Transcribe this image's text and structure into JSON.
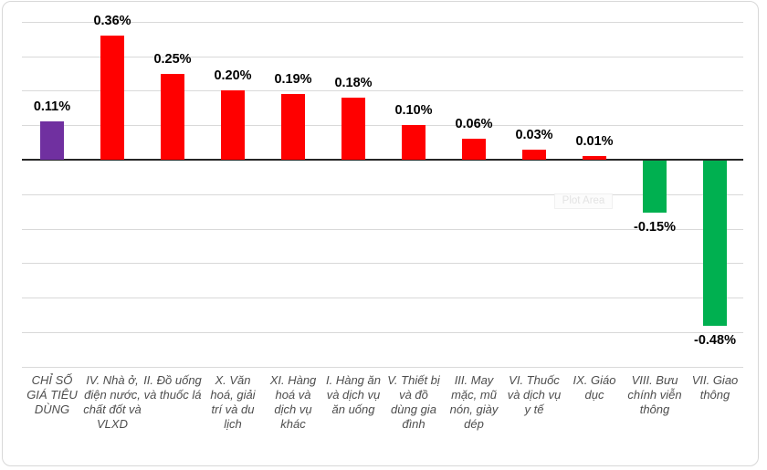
{
  "chart_data": {
    "type": "bar",
    "title": "",
    "xlabel": "",
    "ylabel": "",
    "categories": [
      "CHỈ SỐ GIÁ TIÊU DÙNG",
      "IV. Nhà ở, điện nước, chất đốt và VLXD",
      "II. Đồ uống và thuốc lá",
      "X. Văn hoá, giải trí và du lịch",
      "XI. Hàng hoá và dịch vụ khác",
      "I. Hàng ăn và dịch vụ ăn uống",
      "V. Thiết bị và đồ dùng gia đình",
      "III. May mặc, mũ nón, giày dép",
      "VI. Thuốc và dịch vụ y tế",
      "IX. Giáo dục",
      "VIII. Bưu chính viễn thông",
      "VII. Giao thông"
    ],
    "values": [
      0.11,
      0.36,
      0.25,
      0.2,
      0.19,
      0.18,
      0.1,
      0.06,
      0.03,
      0.01,
      -0.15,
      -0.48
    ],
    "value_labels": [
      "0.11%",
      "0.36%",
      "0.25%",
      "0.20%",
      "0.19%",
      "0.18%",
      "0.10%",
      "0.06%",
      "0.03%",
      "0.01%",
      "-0.15%",
      "-0.48%"
    ],
    "bar_colors": [
      "#7030A0",
      "#FF0000",
      "#FF0000",
      "#FF0000",
      "#FF0000",
      "#FF0000",
      "#FF0000",
      "#FF0000",
      "#FF0000",
      "#FF0000",
      "#00B050",
      "#00B050"
    ],
    "ylim": [
      -0.6,
      0.4
    ],
    "gridline_interval": 0.1,
    "grid": true,
    "legend": false,
    "colors": {
      "cpi_total": "#7030A0",
      "increase": "#FF0000",
      "decrease": "#00B050",
      "gridline": "#D9D9D9",
      "axis_line": "#262626"
    }
  },
  "overlay": {
    "plot_area_tooltip": "Plot Area"
  }
}
